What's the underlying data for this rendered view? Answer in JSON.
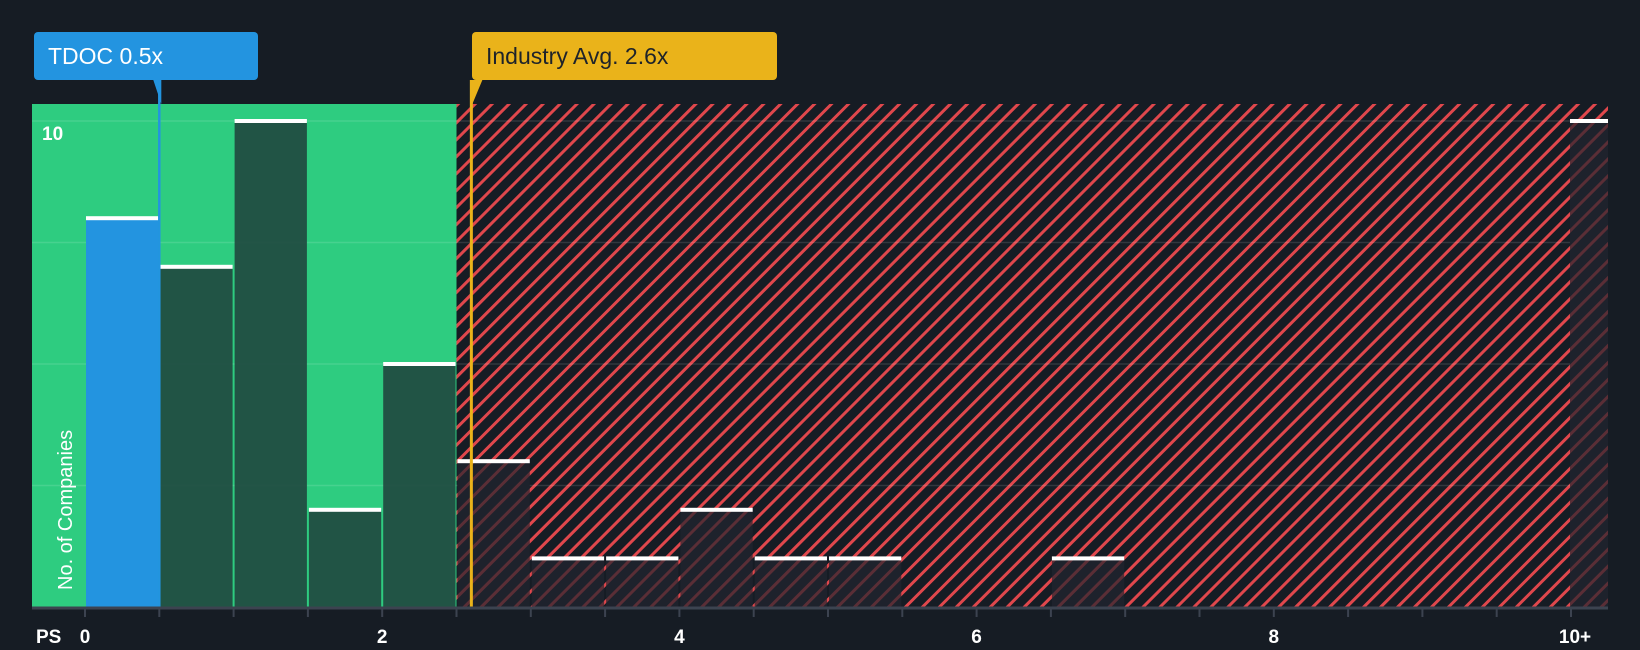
{
  "callouts": {
    "company": {
      "label": "TDOC 0.5x",
      "ticker": "TDOC",
      "value": 0.5,
      "color": "#2394e0"
    },
    "industry": {
      "label": "Industry Avg. 2.6x",
      "value": 2.6,
      "color": "#eab31a"
    }
  },
  "axis": {
    "y_label": "No. of Companies",
    "y_tick_label": "10",
    "x_prefix": "PS",
    "x_tick_labels": [
      "0",
      "2",
      "4",
      "6",
      "8",
      "10+"
    ]
  },
  "colors": {
    "background": "#161c24",
    "undervalued_zone": "#2ecc80",
    "overvalued_stripe": "#e0474c",
    "company_bar": "#2394e0",
    "bar_green_zone": "#214a40",
    "bar_red_zone": "#1e222c"
  },
  "chart_data": {
    "type": "bar",
    "title": "",
    "xlabel": "PS",
    "ylabel": "No. of Companies",
    "categories": [
      "0-0.5",
      "0.5-1",
      "1-1.5",
      "1.5-2",
      "2-2.5",
      "2.5-3",
      "3-3.5",
      "3.5-4",
      "4-4.5",
      "4.5-5",
      "5-5.5",
      "5.5-6",
      "6-6.5",
      "6.5-7",
      "7-7.5",
      "7.5-8",
      "8-8.5",
      "8.5-9",
      "9-9.5",
      "9.5-10",
      "10+"
    ],
    "values": [
      8,
      7,
      10,
      2,
      5,
      3,
      1,
      1,
      2,
      1,
      1,
      0,
      0,
      1,
      0,
      0,
      0,
      0,
      0,
      0,
      10
    ],
    "highlight": {
      "category": "0-0.5",
      "label": "TDOC 0.5x",
      "value": 0.5
    },
    "reference_line": {
      "label": "Industry Avg. 2.6x",
      "value": 2.6
    },
    "undervalued_zone_x": [
      0,
      2.5
    ],
    "ylim": [
      0,
      10
    ],
    "xlim": [
      0,
      10.5
    ],
    "x_ticks": [
      0,
      2,
      4,
      6,
      8,
      10
    ],
    "y_gridlines": [
      2.5,
      5,
      7.5,
      10
    ],
    "grid": true,
    "legend": null
  }
}
